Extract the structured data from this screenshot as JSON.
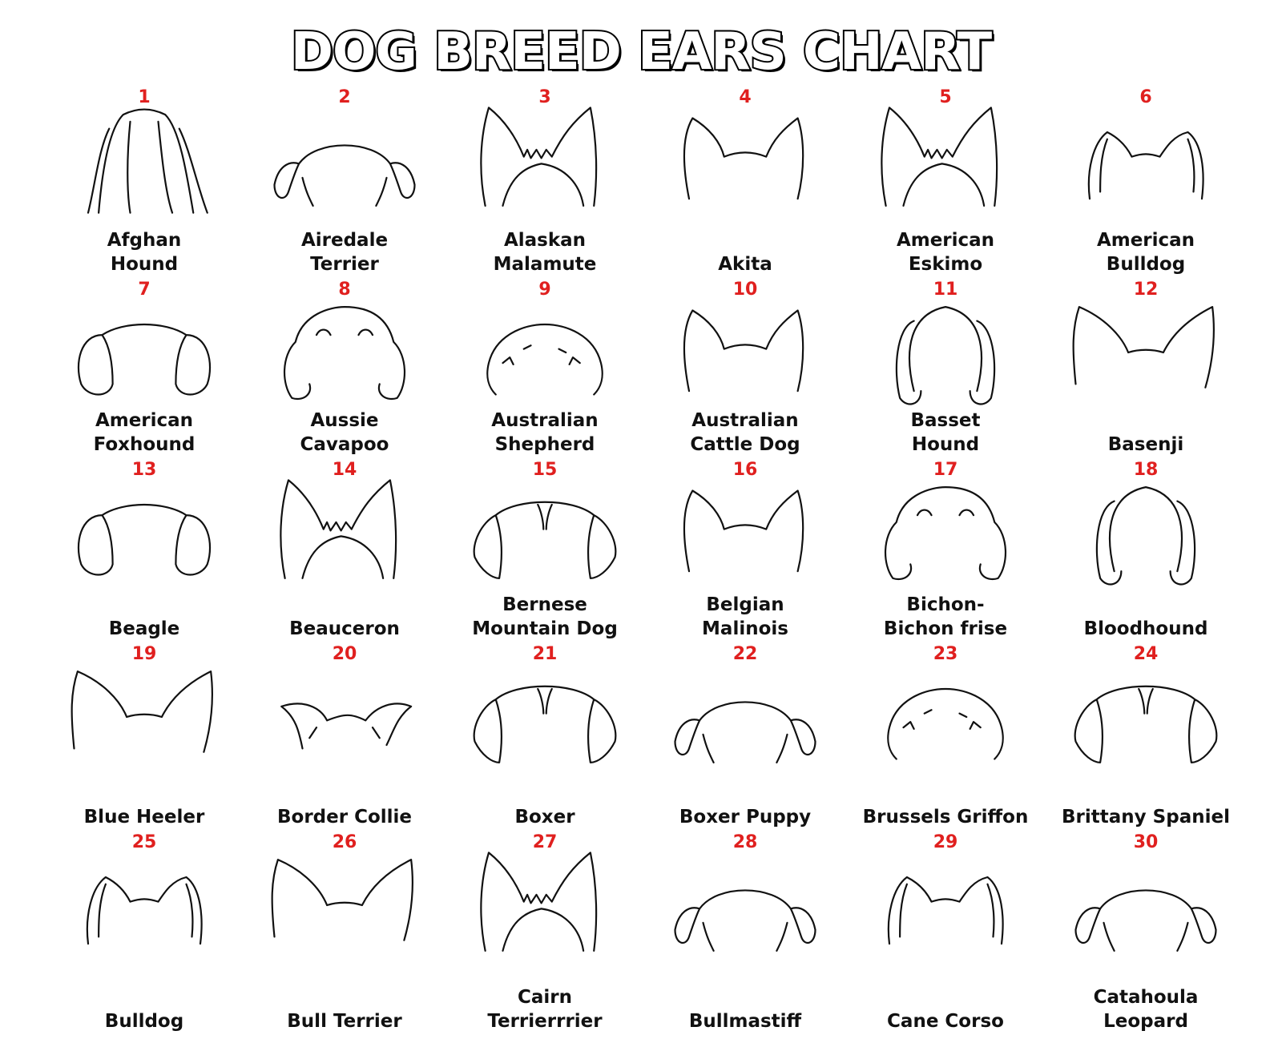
{
  "title": "DOG BREED EARS CHART",
  "breeds": [
    {
      "number": "1",
      "line1": "Afghan",
      "line2": "Hound",
      "ear_type": "long-hair"
    },
    {
      "number": "2",
      "line1": "Airedale",
      "line2": "Terrier",
      "ear_type": "folded"
    },
    {
      "number": "3",
      "line1": "Alaskan",
      "line2": "Malamute",
      "ear_type": "erect-furry"
    },
    {
      "number": "4",
      "line1": "Akita",
      "line2": "",
      "ear_type": "erect"
    },
    {
      "number": "5",
      "line1": "American",
      "line2": "Eskimo",
      "ear_type": "erect-furry"
    },
    {
      "number": "6",
      "line1": "American",
      "line2": "Bulldog",
      "ear_type": "rose"
    },
    {
      "number": "7",
      "line1": "American",
      "line2": "Foxhound",
      "ear_type": "drop"
    },
    {
      "number": "8",
      "line1": "Aussie",
      "line2": "Cavapoo",
      "ear_type": "curly-drop"
    },
    {
      "number": "9",
      "line1": "Australian",
      "line2": "Shepherd",
      "ear_type": "folded-furry"
    },
    {
      "number": "10",
      "line1": "Australian",
      "line2": "Cattle Dog",
      "ear_type": "erect"
    },
    {
      "number": "11",
      "line1": "Basset",
      "line2": "Hound",
      "ear_type": "long-drop"
    },
    {
      "number": "12",
      "line1": "Basenji",
      "line2": "",
      "ear_type": "erect-wide"
    },
    {
      "number": "13",
      "line1": "Beagle",
      "line2": "",
      "ear_type": "drop"
    },
    {
      "number": "14",
      "line1": "Beauceron",
      "line2": "",
      "ear_type": "erect-furry"
    },
    {
      "number": "15",
      "line1": "Bernese",
      "line2": "Mountain Dog",
      "ear_type": "folded-drop"
    },
    {
      "number": "16",
      "line1": "Belgian",
      "line2": "Malinois",
      "ear_type": "erect"
    },
    {
      "number": "17",
      "line1": "Bichon-",
      "line2": "Bichon frise",
      "ear_type": "curly-drop"
    },
    {
      "number": "18",
      "line1": "Bloodhound",
      "line2": "",
      "ear_type": "long-drop"
    },
    {
      "number": "19",
      "line1": "Blue Heeler",
      "line2": "",
      "ear_type": "erect-wide"
    },
    {
      "number": "20",
      "line1": "Border Collie",
      "line2": "",
      "ear_type": "semi-erect"
    },
    {
      "number": "21",
      "line1": "Boxer",
      "line2": "",
      "ear_type": "folded-drop"
    },
    {
      "number": "22",
      "line1": "Boxer Puppy",
      "line2": "",
      "ear_type": "folded"
    },
    {
      "number": "23",
      "line1": "Brussels Griffon",
      "line2": "",
      "ear_type": "folded-furry"
    },
    {
      "number": "24",
      "line1": "Brittany Spaniel",
      "line2": "",
      "ear_type": "folded-drop"
    },
    {
      "number": "25",
      "line1": "Bulldog",
      "line2": "",
      "ear_type": "rose"
    },
    {
      "number": "26",
      "line1": "Bull Terrier",
      "line2": "",
      "ear_type": "erect-wide"
    },
    {
      "number": "27",
      "line1": "Cairn",
      "line2": "Terrierrrier",
      "ear_type": "erect-furry"
    },
    {
      "number": "28",
      "line1": "Bullmastiff",
      "line2": "",
      "ear_type": "folded"
    },
    {
      "number": "29",
      "line1": "Cane Corso",
      "line2": "",
      "ear_type": "rose"
    },
    {
      "number": "30",
      "line1": "Catahoula",
      "line2": "Leopard",
      "ear_type": "folded"
    }
  ]
}
